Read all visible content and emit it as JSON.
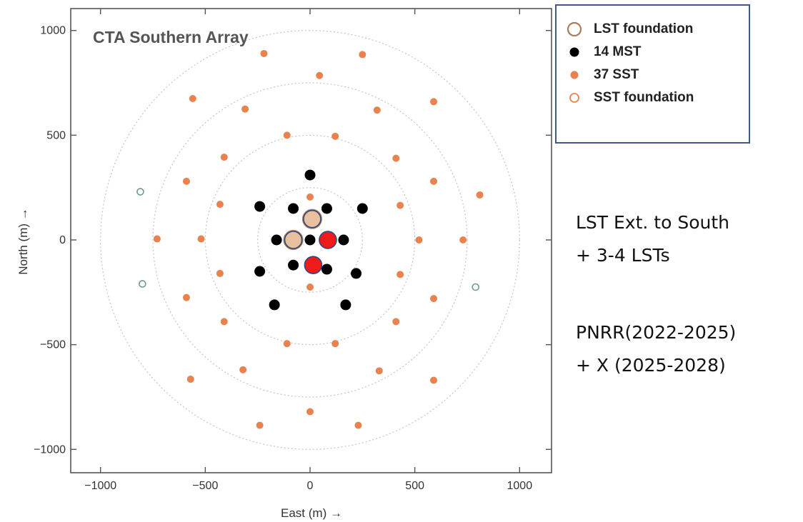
{
  "chart_data": {
    "type": "scatter",
    "title": "CTA Southern Array",
    "xlabel": "East (m)  →",
    "ylabel": "North (m)  →",
    "xlim": [
      -1080,
      1080
    ],
    "ylim": [
      -1080,
      1100
    ],
    "xticks": [
      -1000,
      -500,
      0,
      500,
      1000
    ],
    "yticks": [
      -1000,
      -500,
      0,
      500,
      1000
    ],
    "grid": false,
    "rings_radius": [
      250,
      500,
      750,
      1000
    ],
    "legend_position": "outside top-right",
    "series": [
      {
        "name": "LST foundation",
        "marker": "open-circle-large",
        "color": "#b07a55",
        "points": [
          [
            -80,
            0
          ],
          [
            10,
            100
          ]
        ]
      },
      {
        "name": "14 MST",
        "marker": "filled-circle",
        "color": "#000000",
        "points": [
          [
            0,
            310
          ],
          [
            -240,
            160
          ],
          [
            -80,
            150
          ],
          [
            80,
            150
          ],
          [
            250,
            150
          ],
          [
            -160,
            0
          ],
          [
            0,
            0
          ],
          [
            160,
            0
          ],
          [
            -240,
            -150
          ],
          [
            -80,
            -120
          ],
          [
            80,
            -140
          ],
          [
            220,
            -160
          ],
          [
            -170,
            -310
          ],
          [
            170,
            -310
          ]
        ]
      },
      {
        "name": "37 SST",
        "marker": "filled-circle-small",
        "color": "#e8824f",
        "points": [
          [
            -220,
            890
          ],
          [
            250,
            885
          ],
          [
            45,
            785
          ],
          [
            -560,
            675
          ],
          [
            -310,
            625
          ],
          [
            320,
            620
          ],
          [
            590,
            660
          ],
          [
            -110,
            500
          ],
          [
            120,
            495
          ],
          [
            -410,
            395
          ],
          [
            410,
            390
          ],
          [
            -590,
            280
          ],
          [
            590,
            280
          ],
          [
            0,
            205
          ],
          [
            -430,
            170
          ],
          [
            430,
            165
          ],
          [
            -730,
            5
          ],
          [
            -520,
            5
          ],
          [
            520,
            0
          ],
          [
            730,
            0
          ],
          [
            810,
            215
          ],
          [
            -430,
            -160
          ],
          [
            430,
            -165
          ],
          [
            0,
            -225
          ],
          [
            -590,
            -275
          ],
          [
            590,
            -280
          ],
          [
            -410,
            -390
          ],
          [
            410,
            -390
          ],
          [
            -110,
            -495
          ],
          [
            120,
            -495
          ],
          [
            -320,
            -620
          ],
          [
            330,
            -625
          ],
          [
            590,
            -670
          ],
          [
            -570,
            -665
          ],
          [
            0,
            -820
          ],
          [
            -240,
            -885
          ],
          [
            230,
            -885
          ]
        ]
      },
      {
        "name": "SST foundation",
        "marker": "open-circle-small",
        "color": "#e8824f",
        "points": [
          [
            -810,
            230
          ],
          [
            -800,
            -210
          ],
          [
            790,
            -225
          ]
        ]
      },
      {
        "name": "",
        "marker": "filled-circle-large",
        "color": "#e8c0a0",
        "points": [
          [
            -80,
            0
          ],
          [
            10,
            100
          ]
        ]
      },
      {
        "name": "",
        "marker": "filled-circle-large",
        "color": "#ee1b1b",
        "points": [
          [
            85,
            0
          ],
          [
            15,
            -120
          ]
        ]
      }
    ]
  },
  "legend": {
    "items": [
      {
        "label": "LST foundation",
        "symbol": "lst-open",
        "color": "#b07a55"
      },
      {
        "label": "14 MST",
        "symbol": "filled",
        "color": "#000000"
      },
      {
        "label": "37 SST",
        "symbol": "filled-small",
        "color": "#e8824f"
      },
      {
        "label": "SST foundation",
        "symbol": "sst-open",
        "color": "#e8824f"
      }
    ]
  },
  "notes": {
    "line1": "LST Ext. to South",
    "line2": "+ 3-4 LSTs",
    "line3": "PNRR(2022-2025)",
    "line4": "+ X (2025-2028)"
  }
}
